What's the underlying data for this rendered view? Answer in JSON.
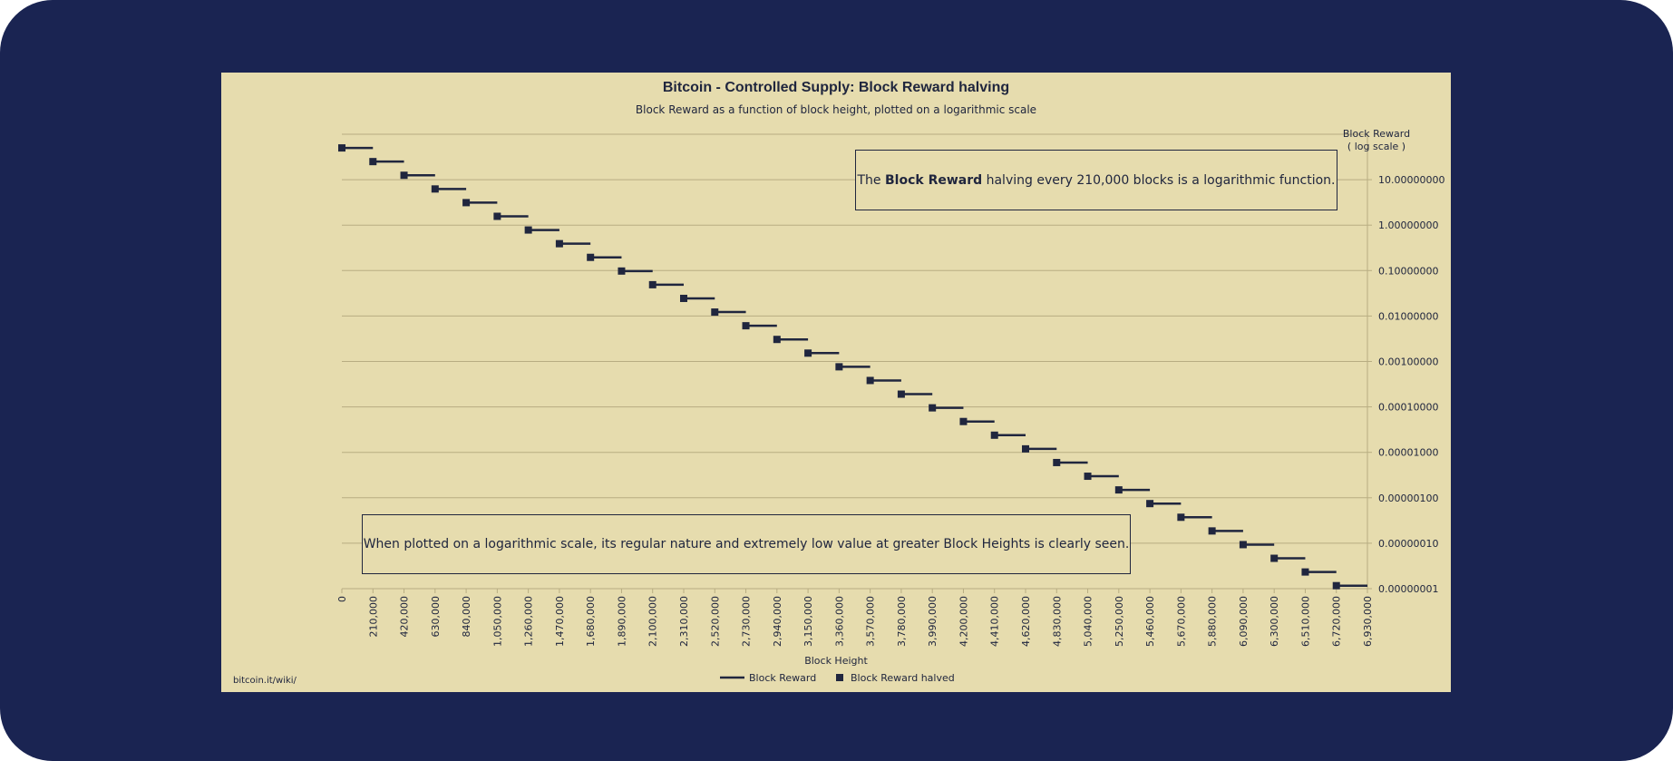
{
  "chart_data": {
    "type": "line",
    "title": "Bitcoin - Controlled Supply: Block Reward halving",
    "subtitle": "Block Reward as a function of block height, plotted on a logarithmic scale",
    "xlabel": "Block Height",
    "ylabel_line1": "Block Reward",
    "ylabel_line2": "( log scale )",
    "y_scale": "log10",
    "y_axis_side": "right",
    "ylim": [
      1e-08,
      100
    ],
    "y_ticks": [
      {
        "value": 10,
        "label": "10.00000000"
      },
      {
        "value": 1,
        "label": "1.00000000"
      },
      {
        "value": 0.1,
        "label": "0.10000000"
      },
      {
        "value": 0.01,
        "label": "0.01000000"
      },
      {
        "value": 0.001,
        "label": "0.00100000"
      },
      {
        "value": 0.0001,
        "label": "0.00010000"
      },
      {
        "value": 1e-05,
        "label": "0.00001000"
      },
      {
        "value": 1e-06,
        "label": "0.00000100"
      },
      {
        "value": 1e-07,
        "label": "0.00000010"
      },
      {
        "value": 1e-08,
        "label": "0.00000001"
      }
    ],
    "x_tick_labels": [
      "0",
      "210,000",
      "420,000",
      "630,000",
      "840,000",
      "1,050,000",
      "1,260,000",
      "1,470,000",
      "1,680,000",
      "1,890,000",
      "2,100,000",
      "2,310,000",
      "2,520,000",
      "2,730,000",
      "2,940,000",
      "3,150,000",
      "3,360,000",
      "3,570,000",
      "3,780,000",
      "3,990,000",
      "4,200,000",
      "4,410,000",
      "4,620,000",
      "4,830,000",
      "5,040,000",
      "5,250,000",
      "5,460,000",
      "5,670,000",
      "5,880,000",
      "6,090,000",
      "6,300,000",
      "6,510,000",
      "6,720,000",
      "6,930,000"
    ],
    "xlim": [
      0,
      6930000
    ],
    "grid": "horizontal",
    "legend_position": "bottom",
    "series": [
      {
        "name": "Block Reward",
        "style": "line",
        "color": "#20263e",
        "note": "step line, constant reward across each 210,000 block era"
      },
      {
        "name": "Block Reward halved",
        "style": "marker",
        "color": "#20263e"
      }
    ],
    "x": [
      0,
      210000,
      420000,
      630000,
      840000,
      1050000,
      1260000,
      1470000,
      1680000,
      1890000,
      2100000,
      2310000,
      2520000,
      2730000,
      2940000,
      3150000,
      3360000,
      3570000,
      3780000,
      3990000,
      4200000,
      4410000,
      4620000,
      4830000,
      5040000,
      5250000,
      5460000,
      5670000,
      5880000,
      6090000,
      6300000,
      6510000,
      6720000
    ],
    "values": [
      50,
      25,
      12.5,
      6.25,
      3.125,
      1.5625,
      0.78125,
      0.390625,
      0.1953125,
      0.09765625,
      0.048828125,
      0.0244140625,
      0.01220703125,
      0.006103515625,
      0.0030517578125,
      0.00152587890625,
      0.000762939453125,
      0.0003814697265625,
      0.00019073486328125,
      9.5367431640625e-05,
      4.76837158203125e-05,
      2.384185791015625e-05,
      1.1920928955078125e-05,
      5.9604644775390625e-06,
      2.9802322387695312e-06,
      1.4901161193847656e-06,
      7.450580596923828e-07,
      3.725290298461914e-07,
      1.862645149230957e-07,
      9.313225746154785e-08,
      4.6566128730773926e-08,
      2.3283064365386963e-08,
      1.1641532182693481e-08
    ],
    "annotations": [
      {
        "text_before": "The ",
        "text_bold": "Block Reward",
        "text_after": " halving every 210,000 blocks is a logarithmic function."
      },
      {
        "text": "When plotted on a logarithmic scale, its regular nature and extremely low value at greater Block Heights is clearly seen."
      }
    ],
    "source": "bitcoin.it/wiki/"
  },
  "colors": {
    "frame": "#1a2452",
    "panel": "#e6dcae",
    "ink": "#20263e",
    "grid": "#b8ad82"
  }
}
